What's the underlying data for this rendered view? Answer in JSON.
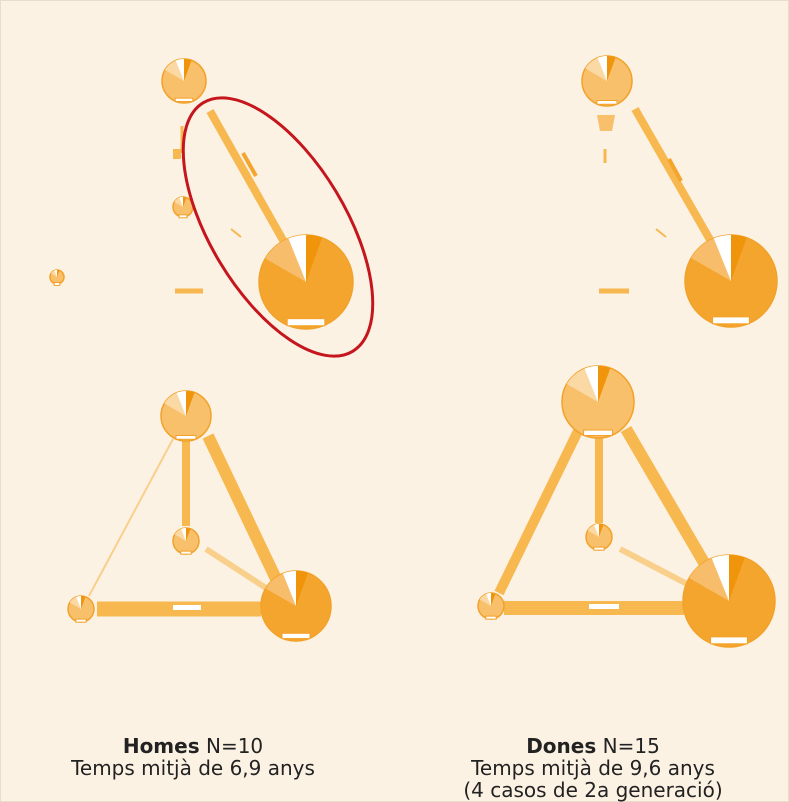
{
  "panels": [
    {
      "label": "Homes",
      "n": "N=10",
      "caption": "Temps mitjà de 6,9 anys"
    },
    {
      "label": "Dones",
      "n": "N=15",
      "caption": "Temps mitjà de 9,6 anys",
      "note": "(4 casos de 2a generació)"
    }
  ]
}
